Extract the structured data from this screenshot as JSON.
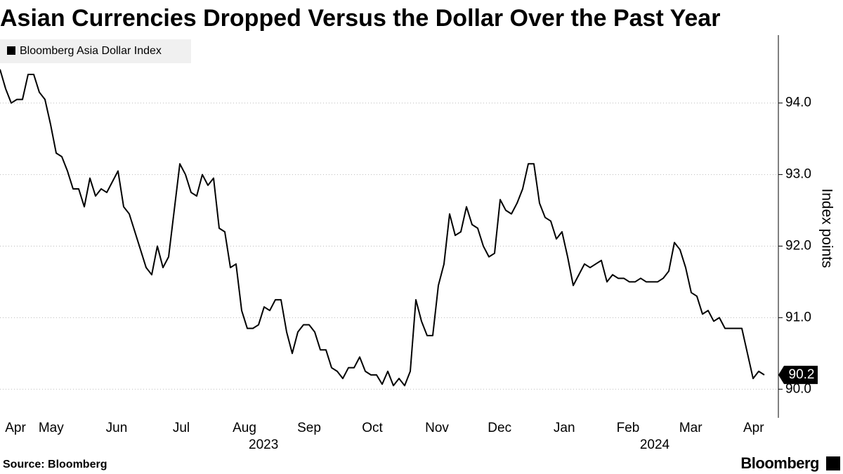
{
  "chart_data": {
    "type": "line",
    "title": "Asian Currencies Dropped Versus the Dollar Over the Past Year",
    "y_label": "Index points",
    "source": "Source: Bloomberg",
    "brand": "Bloomberg",
    "xlim": [
      0,
      136
    ],
    "xticks": [
      {
        "value": 2.75,
        "label": "Apr"
      },
      {
        "value": 9.1,
        "label": "May"
      },
      {
        "value": 20.75,
        "label": "Jun"
      },
      {
        "value": 32.25,
        "label": "Jul"
      },
      {
        "value": 43.5,
        "label": "Aug"
      },
      {
        "value": 55,
        "label": "Sep"
      },
      {
        "value": 66.25,
        "label": "Oct"
      },
      {
        "value": 77.75,
        "label": "Nov"
      },
      {
        "value": 88.9,
        "label": "Dec"
      },
      {
        "value": 100.4,
        "label": "Jan"
      },
      {
        "value": 111.75,
        "label": "Feb"
      },
      {
        "value": 122.9,
        "label": "Mar"
      },
      {
        "value": 134.1,
        "label": "Apr"
      }
    ],
    "year_ticks": [
      {
        "value": 46.9,
        "label": "2023"
      },
      {
        "value": 116.5,
        "label": "2024"
      }
    ],
    "ylim": [
      89.6,
      94.9
    ],
    "yticks": [
      {
        "value": 90,
        "label": "90.0"
      },
      {
        "value": 91,
        "label": "91.0"
      },
      {
        "value": 92,
        "label": "92.0"
      },
      {
        "value": 93,
        "label": "93.0"
      },
      {
        "value": 94,
        "label": "94.0"
      }
    ],
    "grid": true,
    "legend": "top-left",
    "series": [
      {
        "name": "Bloomberg Asia Dollar Index",
        "color": "#000000",
        "values": [
          94.47,
          94.2,
          94.0,
          94.05,
          94.05,
          94.4,
          94.4,
          94.15,
          94.05,
          93.7,
          93.3,
          93.25,
          93.05,
          92.8,
          92.8,
          92.55,
          92.95,
          92.7,
          92.8,
          92.75,
          92.9,
          93.05,
          92.55,
          92.45,
          92.2,
          91.95,
          91.7,
          91.6,
          92.0,
          91.7,
          91.85,
          92.5,
          93.15,
          93.0,
          92.75,
          92.7,
          93.0,
          92.85,
          92.95,
          92.25,
          92.2,
          91.7,
          91.75,
          91.1,
          90.85,
          90.85,
          90.9,
          91.15,
          91.1,
          91.25,
          91.25,
          90.8,
          90.5,
          90.8,
          90.9,
          90.9,
          90.8,
          90.55,
          90.55,
          90.3,
          90.25,
          90.15,
          90.3,
          90.3,
          90.45,
          90.25,
          90.2,
          90.2,
          90.07,
          90.25,
          90.05,
          90.15,
          90.05,
          90.25,
          91.25,
          90.95,
          90.75,
          90.75,
          91.45,
          91.75,
          92.45,
          92.15,
          92.2,
          92.55,
          92.3,
          92.25,
          92.0,
          91.85,
          91.9,
          92.65,
          92.5,
          92.45,
          92.6,
          92.8,
          93.15,
          93.15,
          92.6,
          92.4,
          92.35,
          92.1,
          92.2,
          91.85,
          91.45,
          91.6,
          91.75,
          91.7,
          91.75,
          91.8,
          91.5,
          91.6,
          91.55,
          91.55,
          91.5,
          91.5,
          91.55,
          91.5,
          91.5,
          91.5,
          91.55,
          91.65,
          92.05,
          91.95,
          91.7,
          91.35,
          91.3,
          91.05,
          91.1,
          90.95,
          91.0,
          90.85,
          90.85,
          90.85,
          90.85,
          90.5,
          90.15,
          90.25,
          90.2
        ],
        "value_labels": [
          null,
          null,
          null,
          null,
          null,
          null,
          null,
          null,
          null,
          null,
          null,
          null,
          null,
          null,
          null,
          null,
          null,
          null,
          null,
          null,
          null,
          null,
          null,
          null,
          null,
          null,
          null,
          null,
          null,
          null,
          null,
          null,
          null,
          null,
          null,
          null,
          null,
          null,
          null,
          null,
          null,
          null,
          null,
          null,
          null,
          null,
          null,
          null,
          null,
          null,
          null,
          null,
          null,
          null,
          null,
          null,
          null,
          null,
          null,
          null,
          null,
          null,
          null,
          null,
          null,
          null,
          null,
          null,
          null,
          null,
          null,
          null,
          null,
          null,
          null,
          null,
          null,
          null,
          null,
          null,
          null,
          null,
          null,
          null,
          null,
          null,
          null,
          null,
          null,
          null,
          null,
          null,
          null,
          null,
          null,
          null,
          null,
          null,
          null,
          null,
          null,
          null,
          null,
          null,
          null,
          null,
          null,
          null,
          null,
          null,
          null,
          null,
          null,
          null,
          null,
          null,
          null,
          null,
          null,
          null,
          null,
          null,
          null,
          null,
          null,
          null,
          null,
          null,
          null,
          null,
          null,
          null,
          null,
          null,
          null,
          null,
          "90.2"
        ]
      }
    ]
  }
}
